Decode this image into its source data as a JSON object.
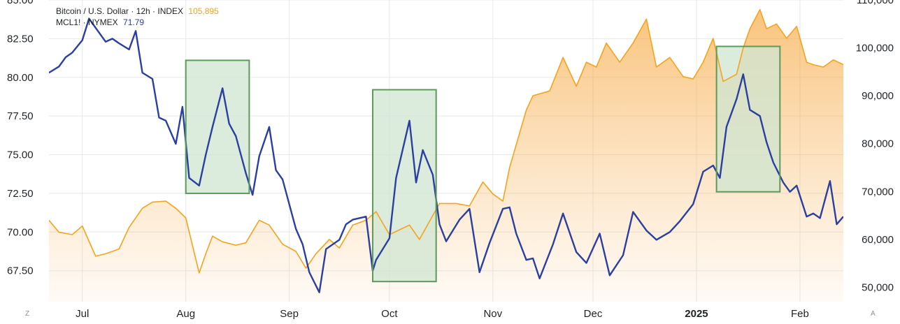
{
  "legend": {
    "btc_label": "Bitcoin / U.S. Dollar · 12h · INDEX",
    "btc_value": "105,895",
    "oil_label": "MCL1! · NYMEX",
    "oil_value": "71.79"
  },
  "colors": {
    "btc": "#f7a21b",
    "oil": "#2a3fa0",
    "box_fill": "#cfe6d1",
    "box_stroke": "#5d9a5a",
    "grid": "#e6e8eb"
  },
  "corner_left": "Z",
  "corner_right": "A",
  "chart_data": {
    "type": "line",
    "x_ticks": [
      {
        "label": "Jul",
        "date": "2024-07-01"
      },
      {
        "label": "Aug",
        "date": "2024-08-01"
      },
      {
        "label": "Sep",
        "date": "2024-09-01"
      },
      {
        "label": "Oct",
        "date": "2024-10-01"
      },
      {
        "label": "Nov",
        "date": "2024-11-01"
      },
      {
        "label": "Dec",
        "date": "2024-12-01"
      },
      {
        "label": "2025",
        "date": "2025-01-01",
        "bold": true
      },
      {
        "label": "Feb",
        "date": "2025-02-01"
      }
    ],
    "x_range": [
      "2024-06-21",
      "2025-02-14"
    ],
    "left_axis": {
      "ticks": [
        "67.50",
        "70.00",
        "72.50",
        "75.00",
        "77.50",
        "80.00",
        "82.50",
        "85.00"
      ],
      "range": [
        65.5,
        85.0
      ]
    },
    "right_axis": {
      "ticks": [
        "50,000",
        "60,000",
        "70,000",
        "80,000",
        "90,000",
        "100,000",
        "110,000"
      ],
      "range": [
        47000,
        110000
      ]
    },
    "grid": true,
    "series": [
      {
        "name": "MCL1!",
        "axis": "left",
        "points": [
          [
            "2024-06-21",
            80.3
          ],
          [
            "2024-06-24",
            80.7
          ],
          [
            "2024-06-26",
            81.3
          ],
          [
            "2024-06-28",
            81.6
          ],
          [
            "2024-07-01",
            82.4
          ],
          [
            "2024-07-03",
            83.8
          ],
          [
            "2024-07-05",
            83.2
          ],
          [
            "2024-07-08",
            82.3
          ],
          [
            "2024-07-10",
            82.5
          ],
          [
            "2024-07-12",
            82.2
          ],
          [
            "2024-07-15",
            81.8
          ],
          [
            "2024-07-17",
            83.0
          ],
          [
            "2024-07-19",
            80.3
          ],
          [
            "2024-07-22",
            79.9
          ],
          [
            "2024-07-24",
            77.4
          ],
          [
            "2024-07-26",
            77.2
          ],
          [
            "2024-07-29",
            75.7
          ],
          [
            "2024-07-31",
            78.1
          ],
          [
            "2024-08-02",
            73.5
          ],
          [
            "2024-08-05",
            73.0
          ],
          [
            "2024-08-07",
            75.0
          ],
          [
            "2024-08-09",
            76.8
          ],
          [
            "2024-08-12",
            79.3
          ],
          [
            "2024-08-14",
            77.0
          ],
          [
            "2024-08-16",
            76.2
          ],
          [
            "2024-08-19",
            73.8
          ],
          [
            "2024-08-21",
            72.4
          ],
          [
            "2024-08-23",
            74.9
          ],
          [
            "2024-08-26",
            76.8
          ],
          [
            "2024-08-28",
            74.0
          ],
          [
            "2024-08-30",
            73.4
          ],
          [
            "2024-09-03",
            70.2
          ],
          [
            "2024-09-05",
            69.2
          ],
          [
            "2024-09-07",
            67.4
          ],
          [
            "2024-09-10",
            66.1
          ],
          [
            "2024-09-12",
            68.9
          ],
          [
            "2024-09-16",
            69.5
          ],
          [
            "2024-09-18",
            70.5
          ],
          [
            "2024-09-20",
            70.8
          ],
          [
            "2024-09-24",
            71.0
          ],
          [
            "2024-09-26",
            67.5
          ],
          [
            "2024-09-27",
            68.2
          ],
          [
            "2024-10-01",
            69.6
          ],
          [
            "2024-10-03",
            73.5
          ],
          [
            "2024-10-07",
            77.2
          ],
          [
            "2024-10-09",
            73.2
          ],
          [
            "2024-10-11",
            75.3
          ],
          [
            "2024-10-14",
            73.7
          ],
          [
            "2024-10-16",
            70.5
          ],
          [
            "2024-10-18",
            69.4
          ],
          [
            "2024-10-22",
            70.8
          ],
          [
            "2024-10-25",
            71.5
          ],
          [
            "2024-10-28",
            67.4
          ],
          [
            "2024-10-31",
            69.3
          ],
          [
            "2024-11-04",
            71.5
          ],
          [
            "2024-11-06",
            71.6
          ],
          [
            "2024-11-08",
            69.9
          ],
          [
            "2024-11-11",
            68.2
          ],
          [
            "2024-11-13",
            68.3
          ],
          [
            "2024-11-15",
            67.0
          ],
          [
            "2024-11-19",
            69.2
          ],
          [
            "2024-11-22",
            71.2
          ],
          [
            "2024-11-26",
            68.7
          ],
          [
            "2024-11-29",
            68.0
          ],
          [
            "2024-12-03",
            69.9
          ],
          [
            "2024-12-06",
            67.2
          ],
          [
            "2024-12-10",
            68.5
          ],
          [
            "2024-12-13",
            71.3
          ],
          [
            "2024-12-17",
            70.1
          ],
          [
            "2024-12-20",
            69.5
          ],
          [
            "2024-12-24",
            70.0
          ],
          [
            "2024-12-27",
            70.7
          ],
          [
            "2024-12-31",
            71.8
          ],
          [
            "2025-01-03",
            73.9
          ],
          [
            "2025-01-06",
            74.3
          ],
          [
            "2025-01-08",
            73.5
          ],
          [
            "2025-01-10",
            76.8
          ],
          [
            "2025-01-13",
            78.6
          ],
          [
            "2025-01-15",
            80.2
          ],
          [
            "2025-01-17",
            77.9
          ],
          [
            "2025-01-20",
            77.5
          ],
          [
            "2025-01-22",
            75.8
          ],
          [
            "2025-01-24",
            74.5
          ],
          [
            "2025-01-27",
            73.2
          ],
          [
            "2025-01-29",
            72.6
          ],
          [
            "2025-01-31",
            73.0
          ],
          [
            "2025-02-03",
            71.0
          ],
          [
            "2025-02-05",
            71.2
          ],
          [
            "2025-02-07",
            70.9
          ],
          [
            "2025-02-10",
            73.3
          ],
          [
            "2025-02-12",
            70.5
          ],
          [
            "2025-02-14",
            71.0
          ]
        ]
      },
      {
        "name": "Bitcoin / U.S. Dollar",
        "axis": "right",
        "points": [
          [
            "2024-06-21",
            64000
          ],
          [
            "2024-06-24",
            61500
          ],
          [
            "2024-06-28",
            61000
          ],
          [
            "2024-07-01",
            62800
          ],
          [
            "2024-07-05",
            56500
          ],
          [
            "2024-07-08",
            57000
          ],
          [
            "2024-07-12",
            58000
          ],
          [
            "2024-07-15",
            62500
          ],
          [
            "2024-07-19",
            66500
          ],
          [
            "2024-07-22",
            67800
          ],
          [
            "2024-07-26",
            68000
          ],
          [
            "2024-07-29",
            66500
          ],
          [
            "2024-08-01",
            64500
          ],
          [
            "2024-08-05",
            53000
          ],
          [
            "2024-08-07",
            57000
          ],
          [
            "2024-08-09",
            60700
          ],
          [
            "2024-08-12",
            59500
          ],
          [
            "2024-08-16",
            58800
          ],
          [
            "2024-08-19",
            59300
          ],
          [
            "2024-08-23",
            64000
          ],
          [
            "2024-08-26",
            63000
          ],
          [
            "2024-08-30",
            59000
          ],
          [
            "2024-09-03",
            57500
          ],
          [
            "2024-09-06",
            54000
          ],
          [
            "2024-09-09",
            57000
          ],
          [
            "2024-09-13",
            60000
          ],
          [
            "2024-09-16",
            58200
          ],
          [
            "2024-09-20",
            63000
          ],
          [
            "2024-09-24",
            64000
          ],
          [
            "2024-09-27",
            65800
          ],
          [
            "2024-10-01",
            61000
          ],
          [
            "2024-10-04",
            62000
          ],
          [
            "2024-10-07",
            63000
          ],
          [
            "2024-10-10",
            60000
          ],
          [
            "2024-10-14",
            65000
          ],
          [
            "2024-10-16",
            67500
          ],
          [
            "2024-10-21",
            67500
          ],
          [
            "2024-10-25",
            67000
          ],
          [
            "2024-10-29",
            72000
          ],
          [
            "2024-11-01",
            69500
          ],
          [
            "2024-11-04",
            68000
          ],
          [
            "2024-11-06",
            75000
          ],
          [
            "2024-11-11",
            87000
          ],
          [
            "2024-11-13",
            90000
          ],
          [
            "2024-11-18",
            91000
          ],
          [
            "2024-11-22",
            98000
          ],
          [
            "2024-11-26",
            92000
          ],
          [
            "2024-11-29",
            97000
          ],
          [
            "2024-12-02",
            96000
          ],
          [
            "2024-12-05",
            101000
          ],
          [
            "2024-12-09",
            97000
          ],
          [
            "2024-12-13",
            101000
          ],
          [
            "2024-12-17",
            106000
          ],
          [
            "2024-12-20",
            96000
          ],
          [
            "2024-12-24",
            98000
          ],
          [
            "2024-12-28",
            94000
          ],
          [
            "2024-12-31",
            93500
          ],
          [
            "2025-01-03",
            97000
          ],
          [
            "2025-01-06",
            102000
          ],
          [
            "2025-01-09",
            93000
          ],
          [
            "2025-01-13",
            94500
          ],
          [
            "2025-01-15",
            100000
          ],
          [
            "2025-01-17",
            104000
          ],
          [
            "2025-01-20",
            108000
          ],
          [
            "2025-01-22",
            104000
          ],
          [
            "2025-01-25",
            105000
          ],
          [
            "2025-01-28",
            102000
          ],
          [
            "2025-01-31",
            104500
          ],
          [
            "2025-02-03",
            97000
          ],
          [
            "2025-02-05",
            96500
          ],
          [
            "2025-02-08",
            96000
          ],
          [
            "2025-02-11",
            97500
          ],
          [
            "2025-02-14",
            96500
          ]
        ]
      }
    ],
    "highlight_boxes": [
      {
        "start": "2024-08-01",
        "end": "2024-08-20",
        "low": 72.5,
        "high": 81.1,
        "axis": "left"
      },
      {
        "start": "2024-09-26",
        "end": "2024-10-15",
        "low": 66.8,
        "high": 79.2,
        "axis": "left"
      },
      {
        "start": "2025-01-07",
        "end": "2025-01-26",
        "low": 72.6,
        "high": 82.0,
        "axis": "left"
      }
    ]
  }
}
